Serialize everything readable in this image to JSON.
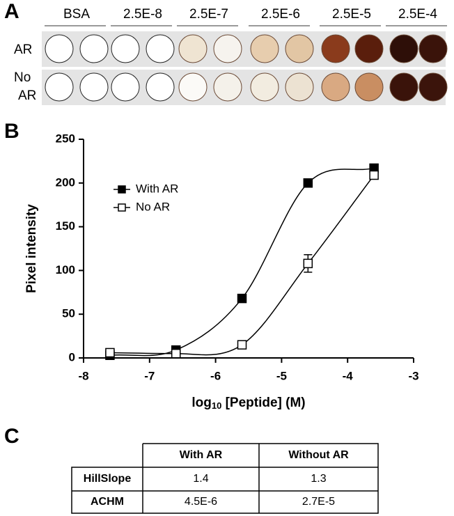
{
  "panel_a": {
    "letter": "A",
    "columns": [
      "BSA",
      "2.5E-8",
      "2.5E-7",
      "2.5E-6",
      "2.5E-5",
      "2.5E-4"
    ],
    "row_labels": [
      "AR",
      "No AR"
    ]
  },
  "panel_b": {
    "letter": "B"
  },
  "chart_data": {
    "type": "line",
    "x": [
      -7.6,
      -6.6,
      -5.6,
      -4.6,
      -3.6
    ],
    "series": [
      {
        "name": "With AR",
        "color": "#000000",
        "marker": "filled-square",
        "values": [
          3,
          9,
          68,
          200,
          217
        ]
      },
      {
        "name": "No AR",
        "color": "#000000",
        "marker": "open-square",
        "values": [
          6,
          5,
          15,
          108,
          209
        ],
        "errors": [
          null,
          null,
          null,
          10,
          null
        ]
      }
    ],
    "x_label": [
      "log",
      "10",
      " [Peptide] (M)"
    ],
    "y_label": "Pixel intensity",
    "xlim": [
      -8,
      -3
    ],
    "xticks": [
      -8,
      -7,
      -6,
      -5,
      -4,
      -3
    ],
    "ylim": [
      0,
      250
    ],
    "yticks": [
      0,
      50,
      100,
      150,
      200,
      250
    ],
    "legend": "upper-left",
    "grid": false
  },
  "panel_c": {
    "letter": "C",
    "table": {
      "columns": [
        "With AR",
        "Without AR"
      ],
      "rows": [
        {
          "label": "HillSlope",
          "values": [
            "1.4",
            "1.3"
          ]
        },
        {
          "label": "ACHM",
          "values": [
            "4.5E-6",
            "2.7E-5"
          ]
        }
      ]
    }
  }
}
